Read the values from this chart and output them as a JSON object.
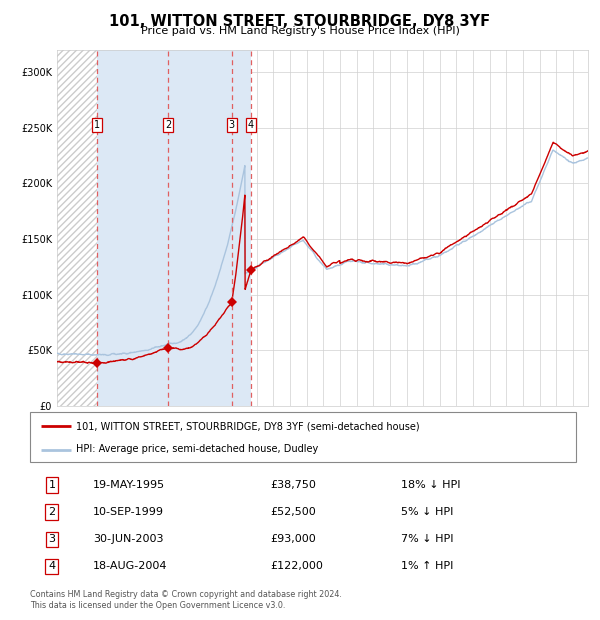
{
  "title": "101, WITTON STREET, STOURBRIDGE, DY8 3YF",
  "subtitle": "Price paid vs. HM Land Registry's House Price Index (HPI)",
  "legend_line1": "101, WITTON STREET, STOURBRIDGE, DY8 3YF (semi-detached house)",
  "legend_line2": "HPI: Average price, semi-detached house, Dudley",
  "footnote": "Contains HM Land Registry data © Crown copyright and database right 2024.\nThis data is licensed under the Open Government Licence v3.0.",
  "transactions": [
    {
      "num": 1,
      "date": "19-MAY-1995",
      "price": 38750,
      "pct": "18%",
      "dir": "↓",
      "year": 1995.38
    },
    {
      "num": 2,
      "date": "10-SEP-1999",
      "price": 52500,
      "pct": "5%",
      "dir": "↓",
      "year": 1999.69
    },
    {
      "num": 3,
      "date": "30-JUN-2003",
      "price": 93000,
      "pct": "7%",
      "dir": "↓",
      "year": 2003.49
    },
    {
      "num": 4,
      "date": "18-AUG-2004",
      "price": 122000,
      "pct": "1%",
      "dir": "↑",
      "year": 2004.63
    }
  ],
  "hpi_color": "#aac4de",
  "price_color": "#cc0000",
  "bg_highlight_color": "#dce8f5",
  "dashed_color": "#e06060",
  "ylim": [
    0,
    320000
  ],
  "yticks": [
    0,
    50000,
    100000,
    150000,
    200000,
    250000,
    300000
  ],
  "xlim_start": 1993.0,
  "xlim_end": 2024.9
}
